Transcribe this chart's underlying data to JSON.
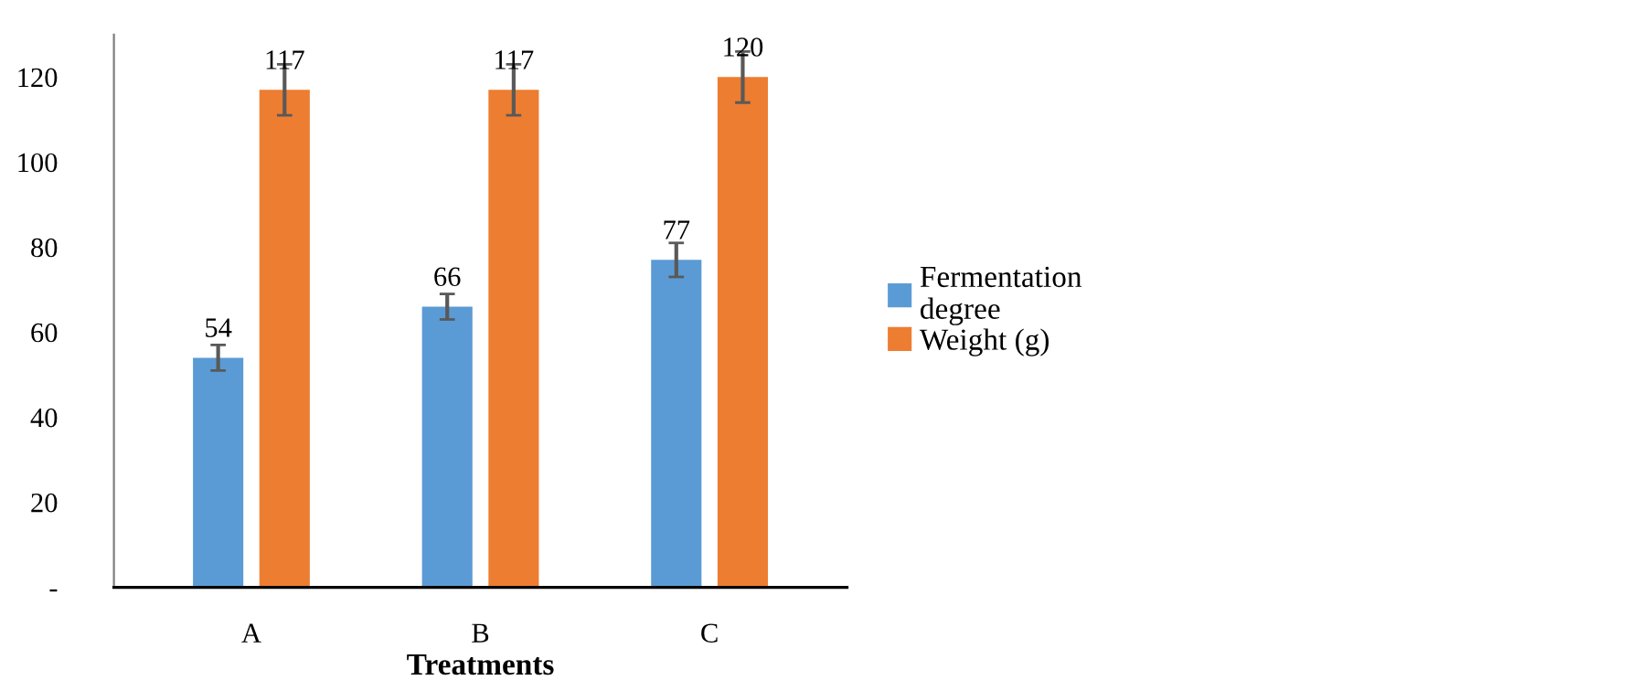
{
  "chart_data": {
    "type": "bar",
    "xlabel": "Treatments",
    "categories": [
      "A",
      "B",
      "C"
    ],
    "series": [
      {
        "name": "Fermentation degree",
        "color": "#5b9bd5",
        "values": [
          54,
          66,
          77
        ],
        "errors": [
          3,
          3,
          4
        ]
      },
      {
        "name": "Weight (g)",
        "color": "#ed7d31",
        "values": [
          117,
          117,
          120
        ],
        "errors": [
          6,
          6,
          6
        ]
      }
    ],
    "ylim": [
      0,
      130
    ],
    "yticks": [
      {
        "value": 0,
        "label": "-"
      },
      20,
      40,
      60,
      80,
      100,
      120
    ],
    "data_labels": true,
    "grid": false,
    "legend": "right"
  }
}
